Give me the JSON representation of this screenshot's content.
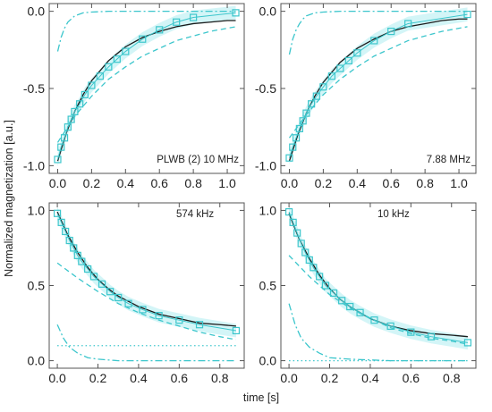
{
  "figure": {
    "ylabel": "Normalized magnetization [a.u.]",
    "xlabel": "time [s]",
    "colors": {
      "data": "#3cc6cc",
      "fit": "#1a1a1a",
      "frame": "#555555",
      "band": "#c4f1f4"
    }
  },
  "chart_data": [
    {
      "type": "scatter",
      "panel": "top-left",
      "annotation": "PLWB (2)   10 MHz",
      "xlim": [
        -0.05,
        1.1
      ],
      "ylim": [
        -1.05,
        0.05
      ],
      "xticks": [
        "0.0",
        "0.2",
        "0.4",
        "0.6",
        "0.8",
        "1.0"
      ],
      "yticks": [
        "0.0",
        "-0.5",
        "-1.0"
      ],
      "series": [
        {
          "role": "data",
          "x": [
            0.0,
            0.02,
            0.04,
            0.06,
            0.08,
            0.1,
            0.13,
            0.16,
            0.2,
            0.25,
            0.3,
            0.35,
            0.4,
            0.5,
            0.6,
            0.7,
            0.8,
            1.05
          ],
          "y": [
            -0.96,
            -0.88,
            -0.82,
            -0.75,
            -0.7,
            -0.65,
            -0.6,
            -0.54,
            -0.48,
            -0.42,
            -0.36,
            -0.31,
            -0.26,
            -0.18,
            -0.12,
            -0.07,
            -0.04,
            -0.01
          ]
        },
        {
          "role": "fit",
          "x": [
            0.0,
            0.05,
            0.1,
            0.15,
            0.2,
            0.3,
            0.4,
            0.5,
            0.6,
            0.7,
            0.8,
            0.9,
            1.0,
            1.05
          ],
          "y": [
            -0.97,
            -0.79,
            -0.65,
            -0.54,
            -0.45,
            -0.32,
            -0.23,
            -0.17,
            -0.13,
            -0.1,
            -0.08,
            -0.07,
            -0.06,
            -0.06
          ]
        },
        {
          "role": "component-dashed",
          "x": [
            0.0,
            0.1,
            0.2,
            0.3,
            0.4,
            0.5,
            0.6,
            0.7,
            0.8,
            0.9,
            1.0,
            1.05
          ],
          "y": [
            -0.85,
            -0.68,
            -0.55,
            -0.44,
            -0.36,
            -0.29,
            -0.24,
            -0.19,
            -0.16,
            -0.13,
            -0.11,
            -0.1
          ]
        },
        {
          "role": "component-dashdot",
          "x": [
            0.0,
            0.02,
            0.04,
            0.06,
            0.08,
            0.1,
            0.15,
            0.2,
            0.3,
            0.5,
            1.05
          ],
          "y": [
            -0.26,
            -0.17,
            -0.11,
            -0.07,
            -0.05,
            -0.03,
            -0.01,
            -0.005,
            0.0,
            0.0,
            0.0
          ]
        }
      ]
    },
    {
      "type": "scatter",
      "panel": "top-right",
      "annotation": "7.88 MHz",
      "xlim": [
        -0.05,
        1.1
      ],
      "ylim": [
        -1.05,
        0.05
      ],
      "xticks": [
        "0.0",
        "0.2",
        "0.4",
        "0.6",
        "0.8",
        "1.0"
      ],
      "yticks": [
        "0.0",
        "-0.5",
        "-1.0"
      ],
      "series": [
        {
          "role": "data",
          "x": [
            0.0,
            0.02,
            0.04,
            0.06,
            0.08,
            0.1,
            0.13,
            0.16,
            0.2,
            0.25,
            0.3,
            0.35,
            0.4,
            0.5,
            0.6,
            0.7,
            1.05
          ],
          "y": [
            -0.95,
            -0.88,
            -0.82,
            -0.76,
            -0.71,
            -0.66,
            -0.6,
            -0.55,
            -0.49,
            -0.42,
            -0.37,
            -0.32,
            -0.27,
            -0.19,
            -0.13,
            -0.08,
            -0.02
          ]
        },
        {
          "role": "fit",
          "x": [
            0.0,
            0.05,
            0.1,
            0.15,
            0.2,
            0.3,
            0.4,
            0.5,
            0.6,
            0.7,
            0.8,
            0.9,
            1.0,
            1.05
          ],
          "y": [
            -0.97,
            -0.8,
            -0.66,
            -0.55,
            -0.46,
            -0.33,
            -0.24,
            -0.18,
            -0.13,
            -0.1,
            -0.08,
            -0.06,
            -0.05,
            -0.05
          ]
        },
        {
          "role": "component-dashed",
          "x": [
            0.0,
            0.1,
            0.2,
            0.3,
            0.4,
            0.5,
            0.6,
            0.7,
            0.8,
            0.9,
            1.0,
            1.05
          ],
          "y": [
            -0.82,
            -0.67,
            -0.54,
            -0.44,
            -0.36,
            -0.29,
            -0.24,
            -0.19,
            -0.16,
            -0.13,
            -0.11,
            -0.1
          ]
        },
        {
          "role": "component-dashdot",
          "x": [
            0.0,
            0.02,
            0.04,
            0.06,
            0.08,
            0.1,
            0.15,
            0.2,
            0.3,
            0.5,
            1.05
          ],
          "y": [
            -0.28,
            -0.18,
            -0.12,
            -0.08,
            -0.05,
            -0.03,
            -0.01,
            -0.005,
            0.0,
            0.0,
            0.0
          ]
        }
      ]
    },
    {
      "type": "scatter",
      "panel": "bottom-left",
      "annotation": "574 kHz",
      "xlim": [
        -0.04,
        0.92
      ],
      "ylim": [
        -0.05,
        1.05
      ],
      "xticks": [
        "0.0",
        "0.2",
        "0.4",
        "0.6",
        "0.8"
      ],
      "yticks": [
        "1.0",
        "0.5",
        "0.0"
      ],
      "series": [
        {
          "role": "data",
          "x": [
            0.0,
            0.02,
            0.04,
            0.06,
            0.08,
            0.1,
            0.12,
            0.15,
            0.18,
            0.22,
            0.26,
            0.3,
            0.35,
            0.42,
            0.5,
            0.6,
            0.7,
            0.88
          ],
          "y": [
            0.98,
            0.92,
            0.86,
            0.8,
            0.75,
            0.7,
            0.66,
            0.61,
            0.56,
            0.51,
            0.46,
            0.42,
            0.38,
            0.34,
            0.3,
            0.27,
            0.24,
            0.2
          ]
        },
        {
          "role": "fit",
          "x": [
            0.0,
            0.05,
            0.1,
            0.15,
            0.2,
            0.25,
            0.3,
            0.4,
            0.5,
            0.6,
            0.7,
            0.8,
            0.88
          ],
          "y": [
            0.99,
            0.84,
            0.72,
            0.62,
            0.54,
            0.48,
            0.43,
            0.36,
            0.31,
            0.28,
            0.25,
            0.24,
            0.23
          ]
        },
        {
          "role": "component-dashed",
          "x": [
            0.0,
            0.1,
            0.2,
            0.3,
            0.4,
            0.5,
            0.6,
            0.7,
            0.8,
            0.88
          ],
          "y": [
            0.65,
            0.55,
            0.46,
            0.38,
            0.32,
            0.27,
            0.23,
            0.19,
            0.16,
            0.14
          ]
        },
        {
          "role": "component-dotted",
          "x": [
            0.0,
            0.88
          ],
          "y": [
            0.1,
            0.1
          ]
        },
        {
          "role": "component-dashdot",
          "x": [
            0.0,
            0.03,
            0.06,
            0.1,
            0.15,
            0.2,
            0.3,
            0.5,
            0.88
          ],
          "y": [
            0.24,
            0.15,
            0.09,
            0.05,
            0.02,
            0.01,
            0.0,
            0.0,
            0.0
          ]
        }
      ]
    },
    {
      "type": "scatter",
      "panel": "bottom-right",
      "annotation": "10 kHz",
      "xlim": [
        -0.04,
        0.92
      ],
      "ylim": [
        -0.05,
        1.05
      ],
      "xticks": [
        "0.0",
        "0.2",
        "0.4",
        "0.6",
        "0.8"
      ],
      "yticks": [
        "1.0",
        "0.5",
        "0.0"
      ],
      "series": [
        {
          "role": "data",
          "x": [
            0.0,
            0.02,
            0.04,
            0.06,
            0.08,
            0.1,
            0.12,
            0.15,
            0.18,
            0.22,
            0.26,
            0.3,
            0.35,
            0.42,
            0.5,
            0.6,
            0.7,
            0.88
          ],
          "y": [
            0.99,
            0.92,
            0.85,
            0.78,
            0.72,
            0.67,
            0.62,
            0.56,
            0.5,
            0.45,
            0.4,
            0.36,
            0.32,
            0.27,
            0.23,
            0.19,
            0.16,
            0.12
          ]
        },
        {
          "role": "fit",
          "x": [
            0.0,
            0.05,
            0.1,
            0.15,
            0.2,
            0.25,
            0.3,
            0.4,
            0.5,
            0.6,
            0.7,
            0.8,
            0.88
          ],
          "y": [
            0.98,
            0.81,
            0.68,
            0.57,
            0.48,
            0.41,
            0.36,
            0.28,
            0.23,
            0.2,
            0.18,
            0.17,
            0.16
          ]
        },
        {
          "role": "component-dashed",
          "x": [
            0.0,
            0.1,
            0.2,
            0.3,
            0.4,
            0.5,
            0.6,
            0.7,
            0.8,
            0.88
          ],
          "y": [
            0.7,
            0.56,
            0.44,
            0.35,
            0.28,
            0.22,
            0.18,
            0.15,
            0.13,
            0.11
          ]
        },
        {
          "role": "component-dotted",
          "x": [
            0.0,
            0.88
          ],
          "y": [
            0.0,
            0.0
          ]
        },
        {
          "role": "component-dashdot",
          "x": [
            0.0,
            0.03,
            0.06,
            0.1,
            0.15,
            0.2,
            0.3,
            0.5,
            0.88
          ],
          "y": [
            0.38,
            0.24,
            0.15,
            0.09,
            0.05,
            0.02,
            0.01,
            0.0,
            0.0
          ]
        }
      ]
    }
  ]
}
